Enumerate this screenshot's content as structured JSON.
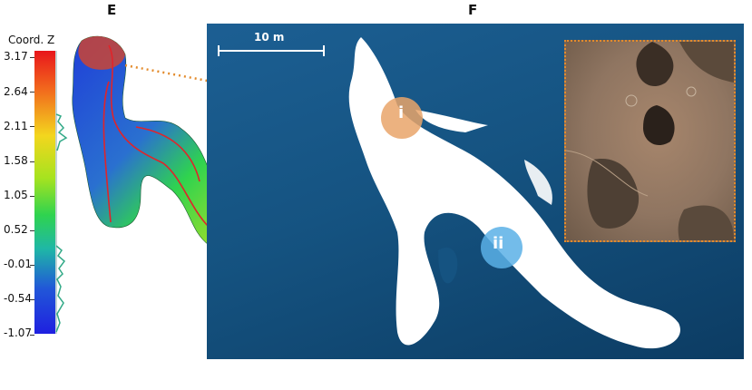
{
  "panels": {
    "left_letter": "E",
    "right_letter": "F"
  },
  "colorbar": {
    "title": "Coord. Z",
    "ticks": [
      "3.17",
      "2.64",
      "2.11",
      "1.58",
      "1.05",
      "0.52",
      "-0.01",
      "-0.54",
      "-1.07"
    ],
    "colors": {
      "high": "#e8151b",
      "mid": "#2fd34f",
      "low": "#1f20e0"
    }
  },
  "panel_f": {
    "scale_label": "10 m",
    "markers": [
      {
        "label": "i",
        "color": "#e9a46a"
      },
      {
        "label": "ii",
        "color": "#5bb0e6"
      }
    ],
    "connector_color": "#e38b2c"
  }
}
